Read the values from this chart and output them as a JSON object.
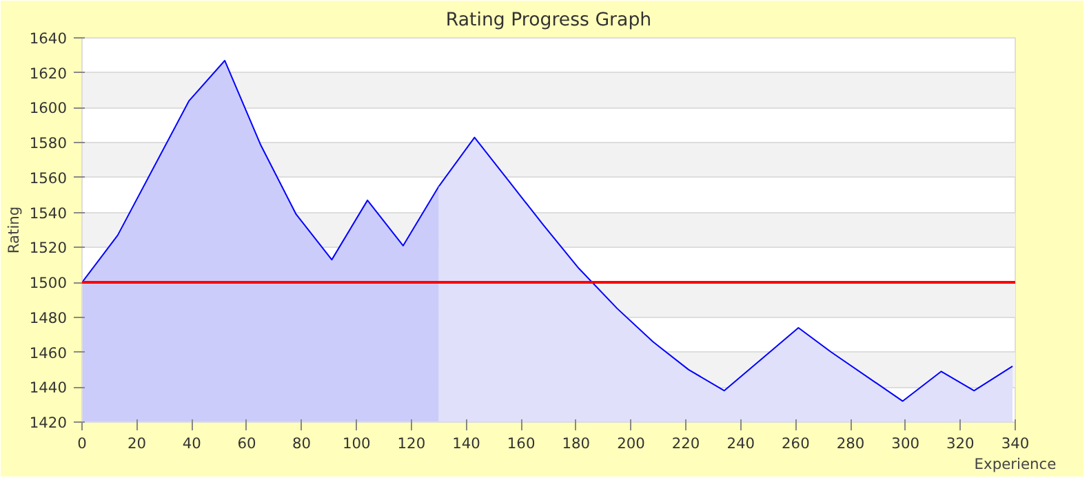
{
  "chart_data": {
    "type": "area",
    "title": "Rating Progress Graph",
    "xlabel": "Experience",
    "ylabel": "Rating",
    "xlim": [
      0,
      340
    ],
    "ylim": [
      1420,
      1640
    ],
    "xticks": [
      0,
      20,
      40,
      60,
      80,
      100,
      120,
      140,
      160,
      180,
      200,
      220,
      240,
      260,
      280,
      300,
      320,
      340
    ],
    "yticks": [
      1420,
      1440,
      1460,
      1480,
      1500,
      1520,
      1540,
      1560,
      1580,
      1600,
      1620,
      1640
    ],
    "grid": "y",
    "series": [
      {
        "color": "#ccccfa",
        "x": [
          0,
          13,
          39,
          52,
          65,
          78,
          91,
          104,
          117,
          130
        ],
        "values": [
          1500,
          1527,
          1604,
          1627,
          1579,
          1539,
          1513,
          1547,
          1521,
          1555
        ]
      },
      {
        "color": "#e0e0fb",
        "x": [
          130,
          143,
          155,
          168,
          181,
          195,
          208,
          221,
          234,
          261,
          273,
          299,
          313,
          325,
          339
        ],
        "values": [
          1555,
          1583,
          1559,
          1533,
          1508,
          1485,
          1466,
          1450,
          1438,
          1474,
          1460,
          1432,
          1449,
          1438,
          1452
        ]
      }
    ],
    "ref_lines": [
      {
        "axis": "y",
        "value": 1500,
        "color": "#ff0000"
      }
    ]
  }
}
